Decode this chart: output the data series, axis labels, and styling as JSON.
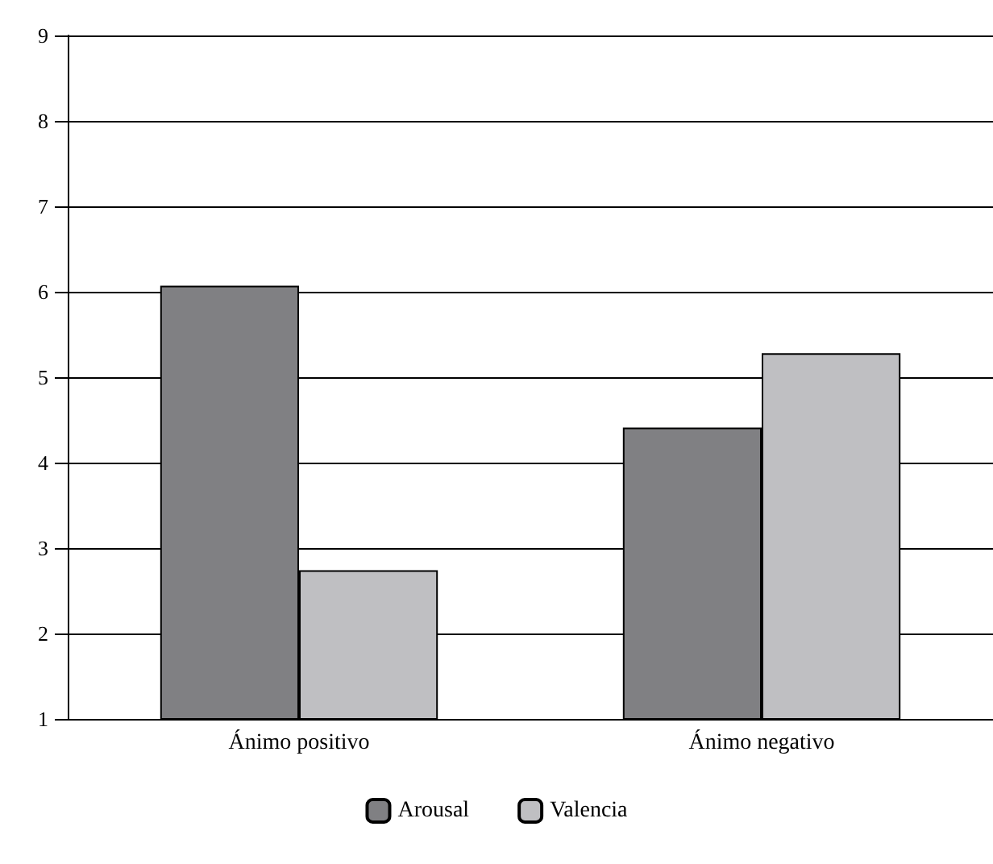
{
  "chart_data": {
    "type": "bar",
    "categories": [
      "Ánimo positivo",
      "Ánimo negativo"
    ],
    "series": [
      {
        "name": "Arousal",
        "color": "#808083",
        "values": [
          6.07,
          4.41
        ]
      },
      {
        "name": "Valencia",
        "color": "#bfbfc2",
        "values": [
          2.74,
          5.28
        ]
      }
    ],
    "ylim": [
      1,
      9
    ],
    "yticks": [
      1,
      2,
      3,
      4,
      5,
      6,
      7,
      8,
      9
    ],
    "grid": "y",
    "legend": "bottom"
  }
}
